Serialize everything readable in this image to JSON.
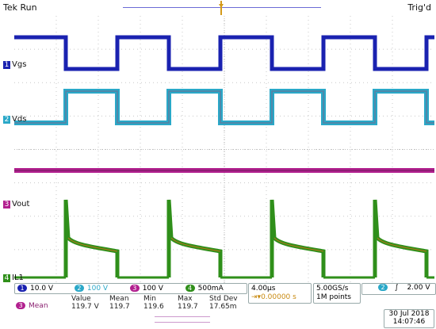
{
  "status": "Tek Run",
  "trigger_state": "Trig'd",
  "channels": [
    {
      "num": "1",
      "name": "Vgs",
      "color": "#1a22b0"
    },
    {
      "num": "2",
      "name": "Vds",
      "color": "#2aa8c8"
    },
    {
      "num": "3",
      "name": "Vout",
      "color": "#b2208f"
    },
    {
      "num": "4",
      "name": "IL1",
      "color": "#2f8f1a"
    }
  ],
  "scales": {
    "ch1": "10.0 V",
    "ch2": "100 V",
    "ch3": "100 V",
    "ch4": "500mA"
  },
  "timebase": "4.00µs",
  "trigger_offset": "0.00000 s",
  "sample_rate": "5.00GS/s",
  "record_length": "1M points",
  "trigger_source": "2",
  "trigger_slope": "∫",
  "trigger_level": "2.00 V",
  "measurement": {
    "channel": "3",
    "label": "Mean",
    "headers": [
      "Value",
      "Mean",
      "Min",
      "Max",
      "Std Dev"
    ],
    "values": [
      "119.7 V",
      "119.7",
      "119.6",
      "119.7",
      "17.65m"
    ]
  },
  "date": "30 Jul 2018",
  "time": "14:07:46"
}
